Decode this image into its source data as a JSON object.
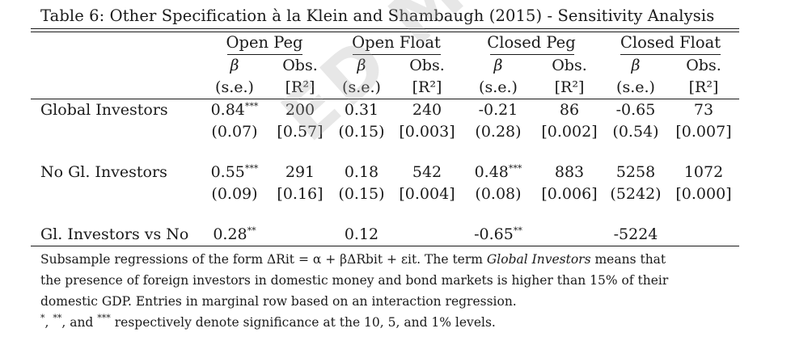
{
  "caption": "Table 6: Other Specification à la Klein and Shambaugh (2015) - Sensitivity Analysis",
  "groups": [
    "Open Peg",
    "Open Float",
    "Closed Peg",
    "Closed Float"
  ],
  "subheaders": {
    "beta": "β",
    "obs": "Obs.",
    "se": "(s.e.)",
    "r2": "[R²]"
  },
  "rows": [
    {
      "label": "Global Investors",
      "coef": [
        "0.84",
        "0.31",
        "-0.21",
        "-0.65"
      ],
      "coef_stars": [
        "***",
        "",
        "",
        ""
      ],
      "obs": [
        "200",
        "240",
        "86",
        "73"
      ],
      "se": [
        "(0.07)",
        "(0.15)",
        "(0.28)",
        "(0.54)"
      ],
      "r2": [
        "[0.57]",
        "[0.003]",
        "[0.002]",
        "[0.007]"
      ]
    },
    {
      "label": "No Gl. Investors",
      "coef": [
        "0.55",
        "0.18",
        "0.48",
        "5258"
      ],
      "coef_stars": [
        "***",
        "",
        "***",
        ""
      ],
      "obs": [
        "291",
        "542",
        "883",
        "1072"
      ],
      "se": [
        "(0.09)",
        "(0.15)",
        "(0.08)",
        "(5242)"
      ],
      "r2": [
        "[0.16]",
        "[0.004]",
        "[0.006]",
        "[0.000]"
      ]
    }
  ],
  "diff_row": {
    "label": "Gl. Investors vs No",
    "values": [
      "0.28",
      "0.12",
      "-0.65",
      "-5224"
    ],
    "stars": [
      "**",
      "",
      "**",
      ""
    ]
  },
  "notes": {
    "line1_pre": "Subsample regressions of the form ΔR",
    "line1_formula": "it = α + βΔR",
    "line1_formula2": "bit + ε",
    "line1_post": "it. The term",
    "line1_italic": "Global Investors",
    "line1_end": "means that",
    "line2": "the presence of foreign investors in domestic money and bond markets is higher than 15% of their",
    "line3": "domestic GDP. Entries in marginal row based on an interaction regression.",
    "line4_s1": "*",
    "line4_s2": "**",
    "line4_s3": "***",
    "line4_text": "respectively denote significance at the 10, 5, and 1% levels."
  },
  "watermark": "ED MANUSC"
}
